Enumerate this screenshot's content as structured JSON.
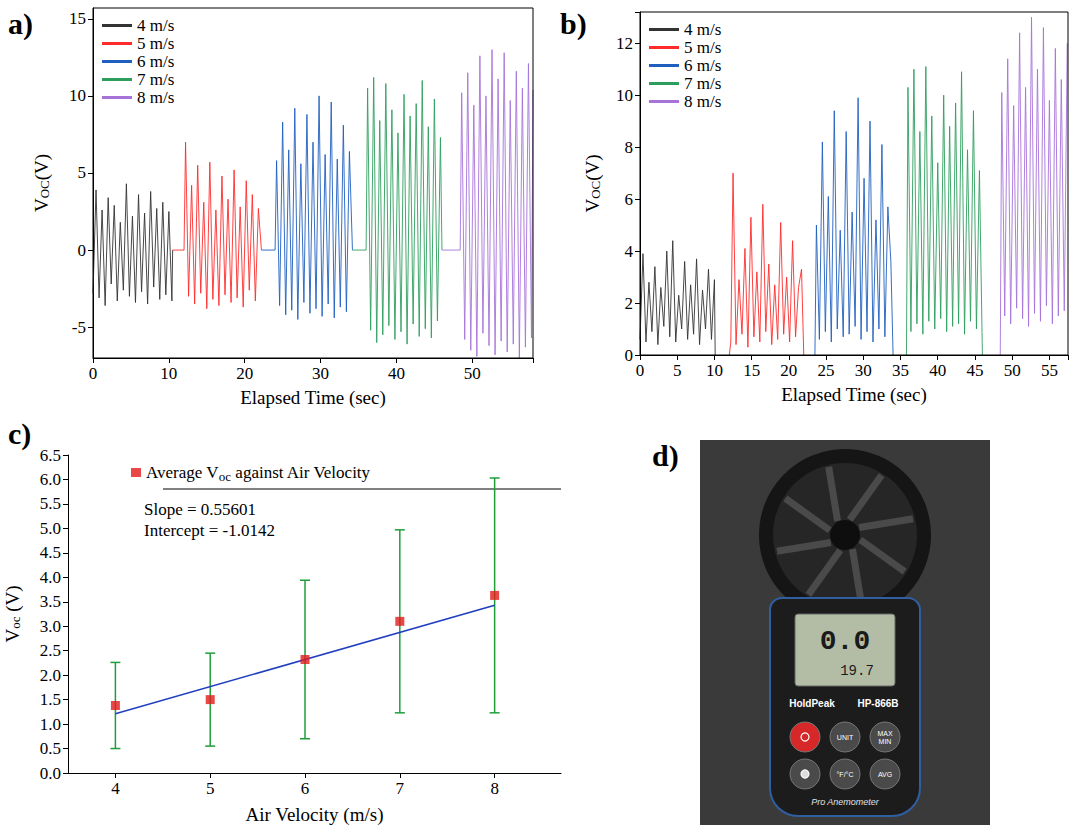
{
  "chart_data": [
    {
      "panel": "a)",
      "type": "line",
      "xlabel": "Elapsed Time (sec)",
      "ylabel": {
        "text": "VOC(V)",
        "subscript": "OC"
      },
      "xlim": [
        0,
        58
      ],
      "xticks": [
        0,
        10,
        20,
        30,
        40,
        50
      ],
      "ylim": [
        -7,
        15.7
      ],
      "yticks": [
        -5,
        0,
        5,
        10,
        15
      ],
      "grid": false,
      "legend": "upper left",
      "series": [
        {
          "name": "4 m/s",
          "color": "#333333",
          "x": [
            0,
            0.4,
            0.8,
            1.2,
            1.6,
            2.0,
            2.4,
            2.8,
            3.2,
            3.6,
            4.0,
            4.4,
            4.8,
            5.2,
            5.6,
            6.0,
            6.4,
            6.8,
            7.2,
            7.6,
            8.0,
            8.4,
            8.8,
            9.2,
            9.6,
            10.0,
            10.4,
            10.5
          ],
          "values": [
            -2.8,
            3.9,
            -3.1,
            2.6,
            -3.6,
            3.4,
            -2.2,
            2.9,
            -3.3,
            1.8,
            -2.6,
            4.3,
            -3.0,
            2.2,
            -3.4,
            3.6,
            -2.7,
            2.4,
            -3.5,
            3.8,
            -2.4,
            2.7,
            -3.2,
            3.1,
            -2.9,
            2.5,
            -3.3,
            0
          ]
        },
        {
          "name": "5 m/s",
          "color": "#ff2b2b",
          "x": [
            10.5,
            12.0,
            12.2,
            12.6,
            13.0,
            13.4,
            13.8,
            14.2,
            14.6,
            15.0,
            15.4,
            15.8,
            16.2,
            16.6,
            17.0,
            17.4,
            17.8,
            18.2,
            18.6,
            19.0,
            19.4,
            19.8,
            20.2,
            20.6,
            21.0,
            21.4,
            21.8,
            22.2
          ],
          "values": [
            0,
            0,
            7.0,
            -3.0,
            4.2,
            -3.5,
            5.5,
            -2.8,
            3.1,
            -3.8,
            5.7,
            -3.2,
            2.6,
            -3.6,
            4.8,
            -2.9,
            3.3,
            -3.4,
            5.2,
            -3.1,
            2.8,
            -3.7,
            4.5,
            -2.6,
            3.6,
            -3.3,
            2.7,
            0
          ]
        },
        {
          "name": "6 m/s",
          "color": "#1f5fbf",
          "x": [
            22.2,
            24.0,
            24.2,
            24.6,
            25.0,
            25.4,
            25.8,
            26.2,
            26.6,
            27.0,
            27.4,
            27.8,
            28.2,
            28.6,
            29.0,
            29.4,
            29.8,
            30.2,
            30.6,
            31.0,
            31.4,
            31.8,
            32.2,
            32.6,
            33.0,
            33.4,
            33.8,
            34.2
          ],
          "values": [
            0,
            0,
            5.8,
            -3.6,
            8.3,
            -4.2,
            6.5,
            -3.9,
            9.2,
            -4.5,
            5.6,
            -3.4,
            8.8,
            -4.1,
            7.0,
            -3.8,
            10.0,
            -4.3,
            6.2,
            -3.5,
            9.6,
            -4.4,
            5.9,
            -3.7,
            8.1,
            -4.0,
            6.4,
            0
          ]
        },
        {
          "name": "7 m/s",
          "color": "#2e9e5e",
          "x": [
            34.2,
            36.0,
            36.2,
            36.6,
            37.0,
            37.4,
            37.8,
            38.2,
            38.6,
            39.0,
            39.4,
            39.8,
            40.2,
            40.6,
            41.0,
            41.4,
            41.8,
            42.2,
            42.6,
            43.0,
            43.4,
            43.8,
            44.2,
            44.6,
            45.0,
            45.4,
            45.8,
            46.0
          ],
          "values": [
            0,
            0,
            10.5,
            -5.2,
            11.2,
            -6.0,
            8.4,
            -5.5,
            10.8,
            -4.9,
            9.1,
            -5.8,
            7.6,
            -5.3,
            10.1,
            -6.1,
            8.7,
            -4.8,
            9.5,
            -5.6,
            11.0,
            -5.1,
            8.0,
            -5.7,
            9.8,
            -4.6,
            7.3,
            0
          ]
        },
        {
          "name": "8 m/s",
          "color": "#a773d9",
          "x": [
            46.0,
            48.4,
            48.6,
            49.0,
            49.4,
            49.8,
            50.2,
            50.6,
            51.0,
            51.4,
            51.8,
            52.2,
            52.6,
            53.0,
            53.4,
            53.8,
            54.2,
            54.6,
            55.0,
            55.4,
            55.8,
            56.2,
            56.6,
            57.0,
            57.4,
            57.8,
            58.0
          ],
          "values": [
            0,
            0,
            10.2,
            -5.8,
            11.5,
            -6.5,
            9.4,
            -6.9,
            12.6,
            -5.4,
            10.0,
            -6.2,
            13.0,
            -6.8,
            11.1,
            -5.9,
            12.8,
            -6.6,
            9.7,
            -6.1,
            11.6,
            -7.0,
            10.5,
            -6.3,
            12.1,
            -5.7,
            10.4
          ]
        }
      ]
    },
    {
      "panel": "b)",
      "type": "line",
      "xlabel": "Elapsed Time (sec)",
      "ylabel": {
        "text": "VOC(V)",
        "subscript": "OC"
      },
      "xlim": [
        0,
        57.5
      ],
      "xticks": [
        0,
        5,
        10,
        15,
        20,
        25,
        30,
        35,
        40,
        45,
        50,
        55
      ],
      "ylim": [
        0,
        13.2
      ],
      "yticks": [
        0,
        2,
        4,
        6,
        8,
        10,
        12
      ],
      "grid": false,
      "legend": "upper left",
      "series": [
        {
          "name": "4 m/s",
          "color": "#333333",
          "x": [
            0,
            0.4,
            0.8,
            1.2,
            1.6,
            2.0,
            2.4,
            2.8,
            3.2,
            3.6,
            4.0,
            4.4,
            4.8,
            5.2,
            5.6,
            6.0,
            6.4,
            6.8,
            7.2,
            7.6,
            8.0,
            8.4,
            8.8,
            9.2,
            9.6,
            10.0,
            10.1
          ],
          "values": [
            0.6,
            3.9,
            0.5,
            2.8,
            0.9,
            3.4,
            0.4,
            2.6,
            1.1,
            4.0,
            0.7,
            4.4,
            0.5,
            2.3,
            1.0,
            3.6,
            0.6,
            2.7,
            0.8,
            3.7,
            0.4,
            2.5,
            1.0,
            3.3,
            0.6,
            2.9,
            0
          ]
        },
        {
          "name": "5 m/s",
          "color": "#ff2b2b",
          "x": [
            12.0,
            12.2,
            12.5,
            12.9,
            13.3,
            13.7,
            14.1,
            14.5,
            14.9,
            15.3,
            15.7,
            16.1,
            16.5,
            16.9,
            17.3,
            17.7,
            18.1,
            18.5,
            18.9,
            19.3,
            19.7,
            20.1,
            20.5,
            20.9,
            21.3,
            21.7,
            22.0
          ],
          "values": [
            0,
            0.5,
            7.0,
            0.4,
            2.9,
            0.8,
            4.1,
            0.3,
            5.3,
            0.7,
            3.2,
            0.5,
            5.8,
            0.9,
            3.5,
            0.4,
            2.7,
            0.6,
            5.1,
            0.8,
            3.0,
            0.5,
            4.4,
            0.7,
            2.6,
            3.3,
            0
          ]
        },
        {
          "name": "6 m/s",
          "color": "#1f5fbf",
          "x": [
            23.5,
            23.7,
            24.1,
            24.5,
            24.9,
            25.3,
            25.7,
            26.1,
            26.5,
            26.9,
            27.3,
            27.7,
            28.1,
            28.5,
            28.9,
            29.3,
            29.7,
            30.1,
            30.5,
            30.9,
            31.3,
            31.7,
            32.1,
            32.5,
            32.9,
            33.3,
            33.7,
            34.0
          ],
          "values": [
            0,
            5.0,
            0.6,
            8.2,
            0.9,
            6.1,
            0.5,
            9.4,
            1.0,
            4.8,
            0.7,
            8.6,
            0.8,
            5.5,
            1.1,
            9.9,
            0.6,
            6.8,
            0.9,
            9.0,
            0.5,
            5.2,
            1.0,
            8.1,
            0.7,
            5.7,
            3.6,
            0
          ]
        },
        {
          "name": "7 m/s",
          "color": "#2e9e5e",
          "x": [
            35.8,
            36.0,
            36.4,
            36.8,
            37.2,
            37.6,
            38.0,
            38.4,
            38.8,
            39.2,
            39.6,
            40.0,
            40.4,
            40.8,
            41.2,
            41.6,
            42.0,
            42.4,
            42.8,
            43.2,
            43.6,
            44.0,
            44.4,
            44.8,
            45.2,
            45.6,
            46.0
          ],
          "values": [
            0,
            10.3,
            0.9,
            11.0,
            1.2,
            8.6,
            0.8,
            11.1,
            1.3,
            9.2,
            1.0,
            7.4,
            1.4,
            10.0,
            0.9,
            8.8,
            1.1,
            9.7,
            1.2,
            10.9,
            0.8,
            7.9,
            1.3,
            9.4,
            1.0,
            7.1,
            0
          ]
        },
        {
          "name": "8 m/s",
          "color": "#a773d9",
          "x": [
            48.4,
            48.6,
            49.0,
            49.4,
            49.8,
            50.2,
            50.6,
            51.0,
            51.4,
            51.8,
            52.2,
            52.6,
            53.0,
            53.4,
            53.8,
            54.2,
            54.6,
            55.0,
            55.4,
            55.8,
            56.2,
            56.6,
            57.0,
            57.4
          ],
          "values": [
            0,
            10.1,
            1.5,
            11.4,
            1.2,
            9.6,
            1.8,
            12.4,
            1.4,
            10.3,
            1.1,
            13.0,
            1.6,
            11.0,
            1.3,
            12.6,
            1.9,
            9.8,
            1.2,
            11.8,
            1.5,
            10.6,
            1.7,
            12.0
          ]
        }
      ]
    },
    {
      "panel": "c)",
      "type": "scatter",
      "xlabel": "Air Velocity (m/s)",
      "ylabel": {
        "text": "Voc (V)",
        "subscript": "oc"
      },
      "xlim": [
        3.5,
        8.7
      ],
      "xticks": [
        4,
        5,
        6,
        7,
        8
      ],
      "ylim": [
        0,
        6.5
      ],
      "yticks": [
        {
          "value": 0,
          "label": "0.0"
        },
        0.5,
        {
          "value": 1,
          "label": "1.0"
        },
        1.5,
        {
          "value": 2,
          "label": "2.0"
        },
        2.5,
        {
          "value": 3,
          "label": "3.0"
        },
        3.5,
        {
          "value": 4,
          "label": "4.0"
        },
        4.5,
        {
          "value": 5,
          "label": "5.0"
        },
        5.5,
        {
          "value": 6,
          "label": "6.0"
        },
        6.5
      ],
      "grid": false,
      "legend": "upper left",
      "annotations": [
        "Slope = 0.55601",
        "Intercept = -1.0142"
      ],
      "series": [
        {
          "name": "Average Voc against Air Velocity",
          "name_subscript": "oc",
          "type": "scatter",
          "marker": "square",
          "color": "#e31a1c",
          "x": [
            4,
            5,
            6,
            7,
            8
          ],
          "values": [
            1.38,
            1.5,
            2.32,
            3.1,
            3.63
          ],
          "errors": [
            0.88,
            0.95,
            1.62,
            1.87,
            2.4
          ]
        },
        {
          "type": "line",
          "color": "#1f3fbf",
          "x": [
            4,
            8
          ],
          "values": [
            1.21,
            3.43
          ]
        }
      ]
    }
  ],
  "photo": {
    "panel": "d)",
    "display": [
      "0.0",
      "19.7"
    ],
    "brand": "HoldPeak",
    "model": "HP-866B",
    "buttons": [
      "UNIT",
      "MAX MIN",
      "°F/°C",
      "AVG"
    ],
    "caption": "Pro Anemometer"
  }
}
